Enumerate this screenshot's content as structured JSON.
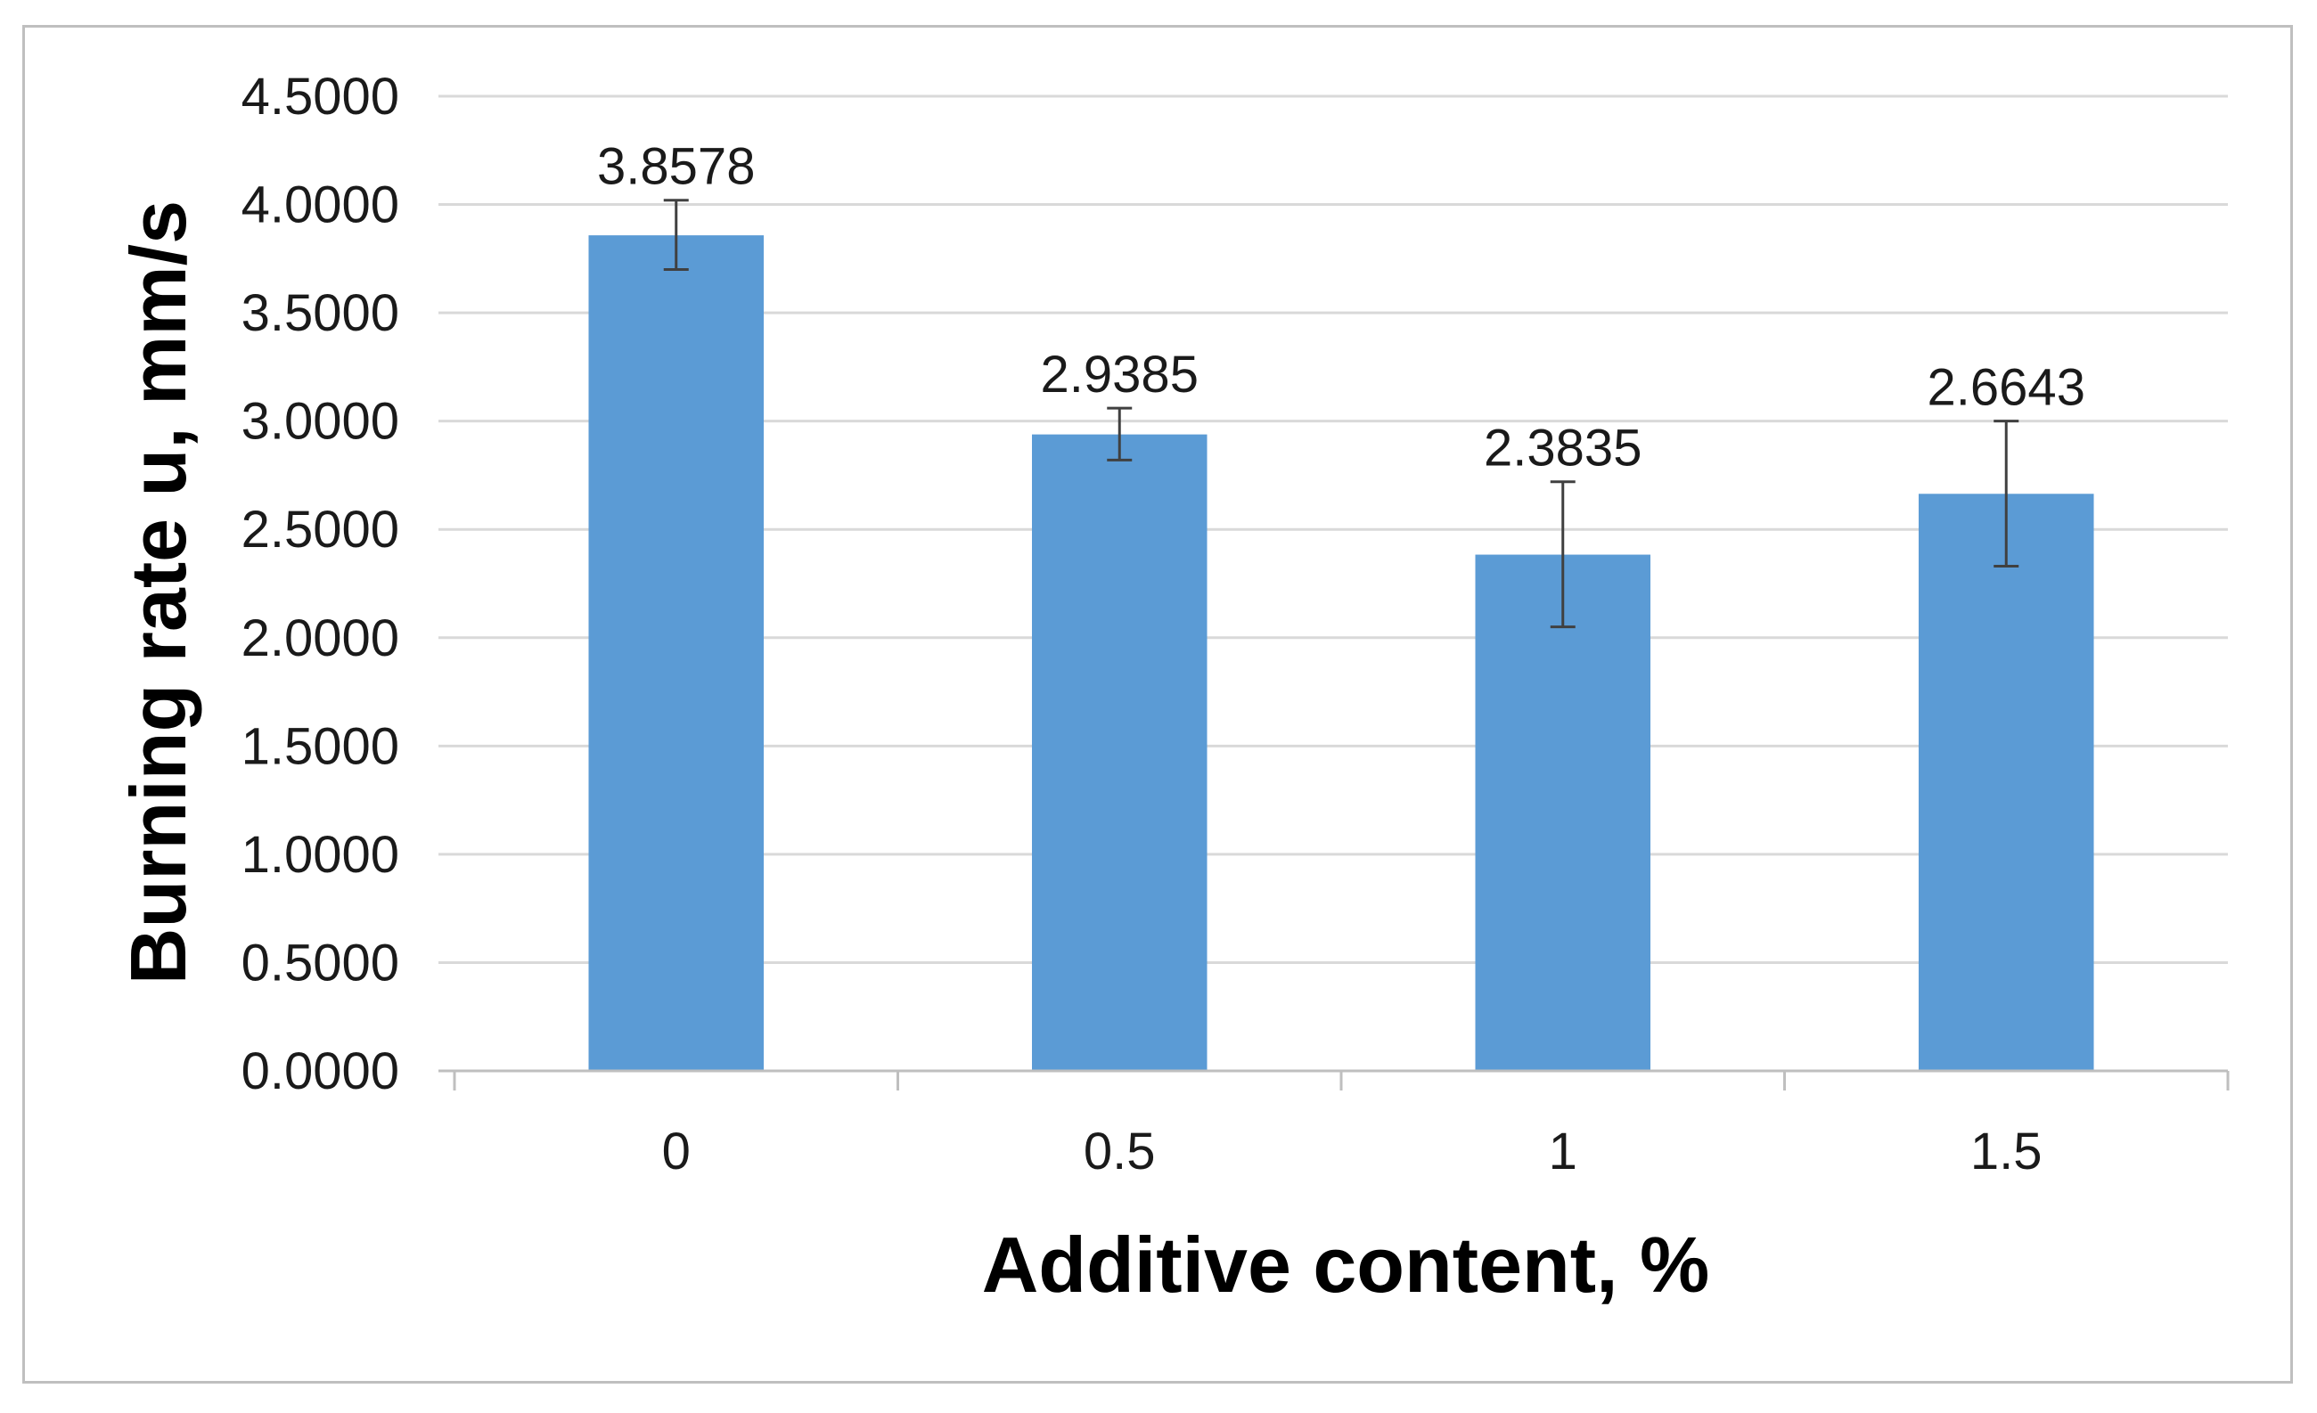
{
  "chart_data": {
    "type": "bar",
    "categories": [
      "0",
      "0.5",
      "1",
      "1.5"
    ],
    "values": [
      3.8578,
      2.9385,
      2.3835,
      2.6643
    ],
    "data_labels": [
      "3.8578",
      "2.9385",
      "2.3835",
      "2.6643"
    ],
    "error_bars": {
      "lower": [
        3.7,
        2.82,
        2.05,
        2.33
      ],
      "upper": [
        4.02,
        3.06,
        2.72,
        3.0
      ]
    },
    "title": "",
    "xlabel": "Additive content, %",
    "ylabel": "Burning rate u, mm/s",
    "ylim": [
      0,
      4.5
    ],
    "yticks": [
      0,
      0.5,
      1.0,
      1.5,
      2.0,
      2.5,
      3.0,
      3.5,
      4.0,
      4.5
    ],
    "ytick_labels": [
      "0.0000",
      "0.5000",
      "1.0000",
      "1.5000",
      "2.0000",
      "2.5000",
      "3.0000",
      "3.5000",
      "4.0000",
      "4.5000"
    ],
    "grid": true,
    "legend": "none",
    "bar_color": "#5b9bd5",
    "grid_color": "#d9d9d9",
    "error_bar_color": "#404040"
  }
}
